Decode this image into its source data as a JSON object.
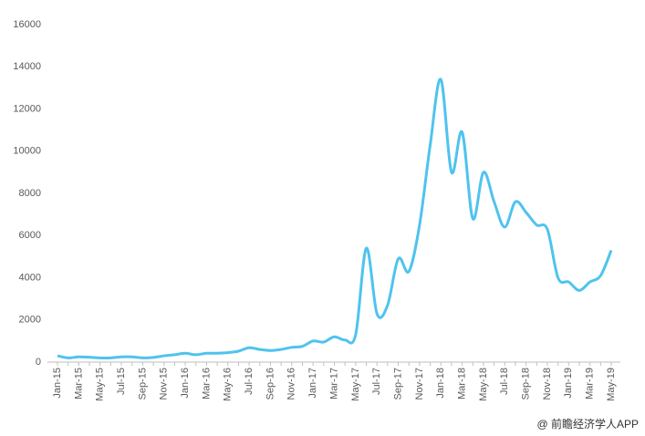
{
  "chart_data": {
    "type": "line",
    "categories": [
      "Jan-15",
      null,
      "Mar-15",
      null,
      "May-15",
      null,
      "Jul-15",
      null,
      "Sep-15",
      null,
      "Nov-15",
      null,
      "Jan-16",
      null,
      "Mar-16",
      null,
      "May-16",
      null,
      "Jul-16",
      null,
      "Sep-16",
      null,
      "Nov-16",
      null,
      "Jan-17",
      null,
      "Mar-17",
      null,
      "May-17",
      null,
      "Jul-17",
      null,
      "Sep-17",
      null,
      "Nov-17",
      null,
      "Jan-18",
      null,
      "Mar-18",
      null,
      "May-18",
      null,
      "Jul-18",
      null,
      "Sep-18",
      null,
      "Nov-18",
      null,
      "Jan-19",
      null,
      "Mar-19",
      null,
      "May-19"
    ],
    "series": [
      {
        "color": "#4fc3ee",
        "values": [
          300,
          200,
          250,
          230,
          200,
          200,
          250,
          250,
          200,
          220,
          300,
          350,
          420,
          350,
          420,
          420,
          450,
          520,
          680,
          600,
          550,
          600,
          700,
          750,
          1000,
          950,
          1200,
          1050,
          1300,
          5400,
          2300,
          2700,
          4900,
          4300,
          6500,
          10300,
          13400,
          9000,
          10900,
          6800,
          9000,
          7600,
          6400,
          7600,
          7100,
          6500,
          6300,
          4000,
          3800,
          3400,
          3800,
          4100,
          5300
        ]
      }
    ],
    "ylim": [
      0,
      16000
    ],
    "yticks": [
      0,
      2000,
      4000,
      6000,
      8000,
      10000,
      12000,
      14000,
      16000
    ],
    "grid": false,
    "source": "@ 前瞻经济学人APP"
  }
}
